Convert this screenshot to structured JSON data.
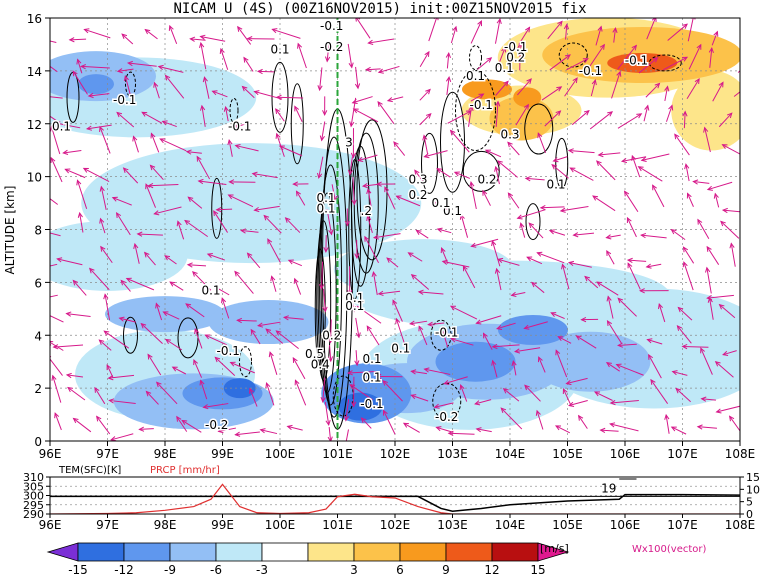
{
  "title": "NICAM U (4S) (00Z16NOV2015) init:00Z15NOV2015 fix",
  "colors": {
    "c_m15": "#7b2fd6",
    "c_m12": "#2f6fe0",
    "c_m9": "#5f97ee",
    "c_m6": "#93bff5",
    "c_m3": "#bfe8f7",
    "c_0": "#ffffff",
    "c_p3": "#fde58a",
    "c_p6": "#fcc24a",
    "c_p9": "#f89a1e",
    "c_p12": "#ee5a1a",
    "c_p15": "#b80f10",
    "c_p18": "#e0198f",
    "vector": "#d6198a",
    "contour": "#000000",
    "green_line": "#2aa63a",
    "prcp_line": "#e03030",
    "tem_line": "#000000"
  },
  "chart_data": [
    {
      "type": "heatmap",
      "title": "NICAM U (4S) (00Z16NOV2015) init:00Z15NOV2015 fix",
      "xlabel": "",
      "ylabel": "ALTITUDE [km]",
      "xlim": [
        96,
        108
      ],
      "ylim": [
        0,
        16
      ],
      "x_ticks": [
        "96E",
        "97E",
        "98E",
        "99E",
        "100E",
        "101E",
        "102E",
        "103E",
        "104E",
        "105E",
        "106E",
        "107E",
        "108E"
      ],
      "y_ticks": [
        "0",
        "2",
        "4",
        "6",
        "8",
        "10",
        "12",
        "14",
        "16"
      ],
      "grid": true,
      "overlays": [
        "contour",
        "wind vectors"
      ],
      "contour_labels": [
        {
          "text": "0.1",
          "x": 100.0,
          "y": 14.8
        },
        {
          "text": "-0.1",
          "x": 100.9,
          "y": 15.7
        },
        {
          "text": "-0.2",
          "x": 100.9,
          "y": 14.9
        },
        {
          "text": "-0.1",
          "x": 99.3,
          "y": 11.9
        },
        {
          "text": "-0.1",
          "x": 97.3,
          "y": 12.9
        },
        {
          "text": "0.1",
          "x": 96.2,
          "y": 11.9
        },
        {
          "text": "3",
          "x": 101.2,
          "y": 11.3
        },
        {
          "text": ".2",
          "x": 101.5,
          "y": 8.7
        },
        {
          "text": "0.1",
          "x": 100.8,
          "y": 9.2
        },
        {
          "text": "0.1",
          "x": 100.8,
          "y": 8.8
        },
        {
          "text": "0.1",
          "x": 98.8,
          "y": 5.7
        },
        {
          "text": "0.1",
          "x": 101.3,
          "y": 5.4
        },
        {
          "text": "0.1",
          "x": 101.3,
          "y": 5.1
        },
        {
          "text": "0.2",
          "x": 100.9,
          "y": 4.0
        },
        {
          "text": "0.5",
          "x": 100.6,
          "y": 3.3
        },
        {
          "text": "0.4",
          "x": 100.7,
          "y": 2.9
        },
        {
          "text": "0.1",
          "x": 101.6,
          "y": 3.1
        },
        {
          "text": "0.1",
          "x": 102.1,
          "y": 3.5
        },
        {
          "text": "-0.1",
          "x": 99.1,
          "y": 3.4
        },
        {
          "text": "-0.2",
          "x": 98.9,
          "y": 0.6
        },
        {
          "text": "0.1",
          "x": 101.6,
          "y": 2.4
        },
        {
          "text": "-0.1",
          "x": 101.6,
          "y": 1.4
        },
        {
          "text": "-0.1",
          "x": 102.9,
          "y": 4.1
        },
        {
          "text": "-0.2",
          "x": 102.9,
          "y": 0.9
        },
        {
          "text": "-0.1",
          "x": 103.5,
          "y": 12.7
        },
        {
          "text": "0.1",
          "x": 103.4,
          "y": 13.8
        },
        {
          "text": "0.1",
          "x": 103.9,
          "y": 14.1
        },
        {
          "text": "-0.1",
          "x": 104.1,
          "y": 14.9
        },
        {
          "text": "0.2",
          "x": 104.1,
          "y": 14.5
        },
        {
          "text": "-0.1",
          "x": 105.4,
          "y": 14.0
        },
        {
          "text": "-0.1",
          "x": 106.2,
          "y": 14.4
        },
        {
          "text": "0.3",
          "x": 104.0,
          "y": 11.6
        },
        {
          "text": "0.2",
          "x": 103.6,
          "y": 9.9
        },
        {
          "text": "0.1",
          "x": 104.8,
          "y": 9.7
        },
        {
          "text": "0.3",
          "x": 102.4,
          "y": 9.9
        },
        {
          "text": "0.2",
          "x": 102.4,
          "y": 9.3
        },
        {
          "text": "0.1",
          "x": 103.0,
          "y": 8.7
        },
        {
          "text": "0.1",
          "x": 102.8,
          "y": 9.0
        }
      ]
    },
    {
      "type": "line",
      "title": "",
      "x": [
        96,
        97,
        97.5,
        98,
        98.5,
        98.8,
        99,
        99.3,
        99.6,
        100,
        100.5,
        100.8,
        101,
        101.3,
        101.6,
        102,
        102.4,
        102.8,
        103,
        103.5,
        104,
        105,
        105.9,
        106,
        107,
        108
      ],
      "series": [
        {
          "name": "TEM(SFC)[K]",
          "axis": "left",
          "values": [
            299.5,
            299.5,
            299.5,
            299.5,
            299.5,
            299.5,
            299.5,
            299.5,
            299.5,
            299.5,
            299.5,
            299.5,
            299.5,
            299.5,
            299.5,
            299.5,
            299.5,
            293.0,
            291.5,
            293.0,
            295.0,
            297.0,
            298.0,
            300.5,
            300.5,
            300.2
          ]
        },
        {
          "name": "PRCP [mm/hr]",
          "axis": "right",
          "values": [
            0,
            0.2,
            0.5,
            1.5,
            3,
            6,
            12,
            3,
            0.5,
            0.2,
            0.5,
            2,
            7,
            8,
            7,
            6.5,
            3,
            0.5,
            0,
            0,
            0,
            0,
            0,
            0,
            0,
            0
          ]
        }
      ],
      "y_left_ticks": [
        "290",
        "295",
        "300",
        "305",
        "310"
      ],
      "y_right_ticks": [
        "0",
        "5",
        "10",
        "15"
      ],
      "xlim": [
        96,
        108
      ],
      "x_ticks": [
        "96E",
        "97E",
        "98E",
        "99E",
        "100E",
        "101E",
        "102E",
        "103E",
        "104E",
        "105E",
        "106E",
        "107E",
        "108E"
      ],
      "annotation": "19"
    }
  ],
  "colorbar": {
    "ticks": [
      "-15",
      "-12",
      "-9",
      "-6",
      "-3",
      "3",
      "6",
      "9",
      "12",
      "15"
    ],
    "unit": "[m/s]",
    "vector_label": "Wx100(vector)"
  }
}
